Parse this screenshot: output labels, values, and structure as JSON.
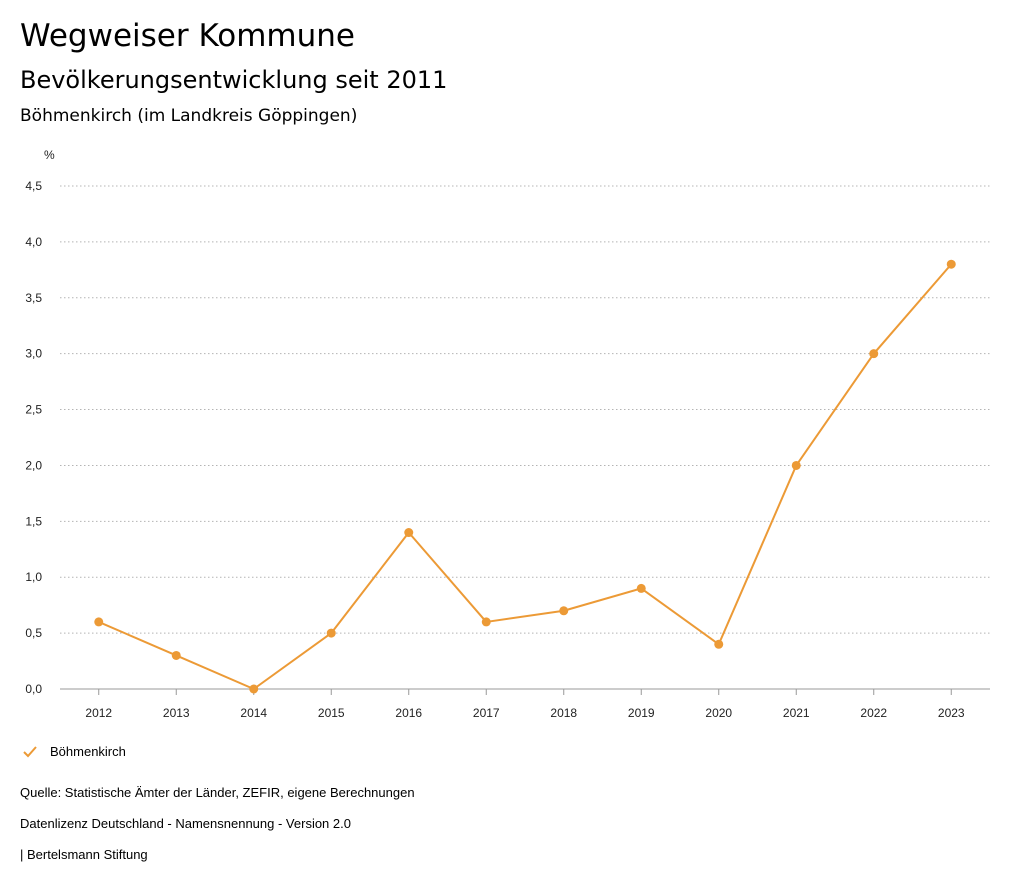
{
  "header": {
    "title": "Wegweiser Kommune",
    "subtitle": "Bevölkerungsentwicklung seit 2011",
    "region": "Böhmenkirch (im Landkreis Göppingen)"
  },
  "colors": {
    "series": "#EC9A36",
    "grid": "#b4b4b4",
    "axis": "#999999"
  },
  "chart_data": {
    "type": "line",
    "yunit": "%",
    "x": [
      "2012",
      "2013",
      "2014",
      "2015",
      "2016",
      "2017",
      "2018",
      "2019",
      "2020",
      "2021",
      "2022",
      "2023"
    ],
    "series": [
      {
        "name": "Böhmenkirch",
        "values": [
          0.6,
          0.3,
          0.0,
          0.5,
          1.4,
          0.6,
          0.7,
          0.9,
          0.4,
          2.0,
          3.0,
          3.8
        ]
      }
    ],
    "yticks": [
      "0,0",
      "0,5",
      "1,0",
      "1,5",
      "2,0",
      "2,5",
      "3,0",
      "3,5",
      "4,0",
      "4,5"
    ],
    "ylim": [
      0,
      4.5
    ],
    "grid": true,
    "legend_position": "bottom-left"
  },
  "legend": {
    "label": "Böhmenkirch"
  },
  "footer": {
    "source": "Quelle: Statistische Ämter der Länder, ZEFIR, eigene Berechnungen",
    "license": "Datenlizenz Deutschland - Namensnennung - Version 2.0",
    "publisher": "| Bertelsmann Stiftung"
  }
}
